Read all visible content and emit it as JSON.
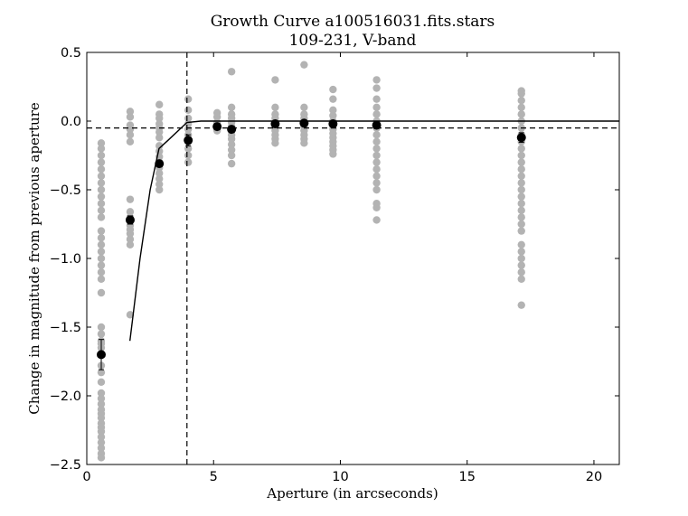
{
  "chart_data": {
    "type": "scatter",
    "title": "Growth Curve a100516031.fits.stars",
    "subtitle": "109-231, V-band",
    "xlabel": "Aperture (in arcseconds)",
    "ylabel": "Change in magnitude from previous aperture",
    "xlim": [
      0,
      21
    ],
    "ylim": [
      -2.5,
      0.5
    ],
    "xticks": [
      0,
      5,
      10,
      15,
      20
    ],
    "yticks": [
      0.5,
      0.0,
      -0.5,
      -1.0,
      -1.5,
      -2.0,
      -2.5
    ],
    "xtick_labels": [
      "0",
      "5",
      "10",
      "15",
      "20"
    ],
    "ytick_labels": [
      "0.5",
      "0.0",
      "−0.5",
      "−1.0",
      "−1.5",
      "−2.0",
      "−2.5"
    ],
    "grid": false,
    "colors": {
      "star_points": "#b3b3b3",
      "mean_points": "#000000",
      "curve": "#000000",
      "reference_lines": "#000000"
    },
    "reference_lines": {
      "vertical_x": 3.95,
      "horizontal_y": -0.05,
      "style": "dashed"
    },
    "model_curve": {
      "x": [
        1.7,
        2.1,
        2.5,
        2.85,
        3.2,
        3.95,
        4.5,
        5.5,
        7,
        10,
        15,
        21
      ],
      "y": [
        -1.6,
        -1.0,
        -0.5,
        -0.2,
        -0.14,
        -0.01,
        0.0,
        0.0,
        0.0,
        0.0,
        0.0,
        0.0
      ]
    },
    "means": {
      "x": [
        0.57,
        1.71,
        2.86,
        4.0,
        5.14,
        5.71,
        7.43,
        8.57,
        9.71,
        11.43,
        17.14
      ],
      "y": [
        -1.7,
        -0.72,
        -0.31,
        -0.14,
        -0.04,
        -0.06,
        -0.02,
        -0.015,
        -0.02,
        -0.03,
        -0.12
      ],
      "err": [
        0.11,
        0.03,
        0.02,
        0.04,
        0.02,
        0.02,
        0.01,
        0.01,
        0.01,
        0.015,
        0.035
      ]
    },
    "stars": [
      {
        "x": 0.57,
        "y": [
          -0.16,
          -0.2,
          -0.25,
          -0.3,
          -0.35,
          -0.4,
          -0.45,
          -0.5,
          -0.55,
          -0.6,
          -0.65,
          -0.7,
          -0.8,
          -0.85,
          -0.9,
          -0.95,
          -1.0,
          -1.05,
          -1.1,
          -1.15,
          -1.25,
          -1.5,
          -1.55,
          -1.6,
          -1.62,
          -1.65,
          -1.7,
          -1.78,
          -1.83,
          -1.9,
          -1.98,
          -2.02,
          -2.06,
          -2.1,
          -2.13,
          -2.16,
          -2.2,
          -2.23,
          -2.26,
          -2.3,
          -2.34,
          -2.38,
          -2.42,
          -2.45
        ]
      },
      {
        "x": 1.71,
        "y": [
          0.07,
          0.03,
          -0.03,
          -0.06,
          -0.1,
          -0.15,
          -0.57,
          -0.66,
          -0.7,
          -0.73,
          -0.76,
          -0.79,
          -0.82,
          -0.86,
          -0.9,
          -1.41
        ]
      },
      {
        "x": 2.86,
        "y": [
          0.12,
          0.05,
          0.02,
          -0.02,
          -0.05,
          -0.08,
          -0.12,
          -0.18,
          -0.22,
          -0.26,
          -0.3,
          -0.34,
          -0.38,
          -0.42,
          -0.46,
          -0.5
        ]
      },
      {
        "x": 4.0,
        "y": [
          0.16,
          0.08,
          0.02,
          -0.02,
          -0.06,
          -0.1,
          -0.15,
          -0.2,
          -0.25,
          -0.3
        ]
      },
      {
        "x": 5.14,
        "y": [
          0.06,
          0.03,
          -0.01,
          -0.04,
          -0.07
        ]
      },
      {
        "x": 5.71,
        "y": [
          0.36,
          0.1,
          0.05,
          0.02,
          -0.01,
          -0.04,
          -0.07,
          -0.1,
          -0.13,
          -0.17,
          -0.21,
          -0.25,
          -0.31
        ]
      },
      {
        "x": 7.43,
        "y": [
          0.3,
          0.1,
          0.05,
          0.02,
          -0.01,
          -0.04,
          -0.07,
          -0.1,
          -0.13,
          -0.16
        ]
      },
      {
        "x": 8.57,
        "y": [
          0.41,
          0.1,
          0.05,
          0.02,
          -0.01,
          -0.04,
          -0.07,
          -0.1,
          -0.13,
          -0.16
        ]
      },
      {
        "x": 9.71,
        "y": [
          0.23,
          0.16,
          0.08,
          0.04,
          0.0,
          -0.03,
          -0.06,
          -0.09,
          -0.12,
          -0.15,
          -0.18,
          -0.21,
          -0.24
        ]
      },
      {
        "x": 11.43,
        "y": [
          0.3,
          0.24,
          0.16,
          0.1,
          0.05,
          0.0,
          -0.05,
          -0.1,
          -0.15,
          -0.2,
          -0.25,
          -0.3,
          -0.35,
          -0.4,
          -0.45,
          -0.5,
          -0.6,
          -0.63,
          -0.72
        ]
      },
      {
        "x": 17.14,
        "y": [
          0.22,
          0.2,
          0.15,
          0.1,
          0.05,
          0.0,
          -0.05,
          -0.1,
          -0.15,
          -0.2,
          -0.25,
          -0.3,
          -0.35,
          -0.4,
          -0.45,
          -0.5,
          -0.55,
          -0.6,
          -0.65,
          -0.7,
          -0.75,
          -0.8,
          -0.9,
          -0.95,
          -1.0,
          -1.05,
          -1.1,
          -1.15,
          -1.34
        ]
      }
    ]
  }
}
